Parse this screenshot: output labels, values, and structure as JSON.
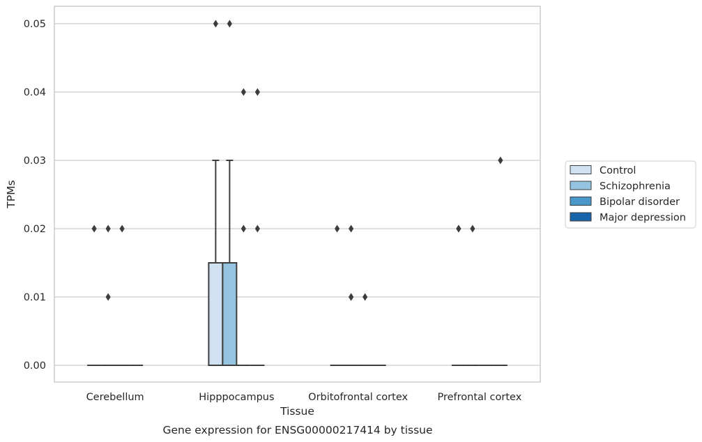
{
  "chart_data": {
    "type": "box",
    "xlabel": "Tissue",
    "ylabel": "TPMs",
    "caption": "Gene expression for ENSG00000217414 by tissue",
    "ylim": [
      -0.0025,
      0.0525
    ],
    "yticks": [
      0.0,
      0.01,
      0.02,
      0.03,
      0.04,
      0.05
    ],
    "ytick_labels": [
      "0.00",
      "0.01",
      "0.02",
      "0.03",
      "0.04",
      "0.05"
    ],
    "grid": "horizontal",
    "legend_position": "right",
    "categories": [
      "Cerebellum",
      "Hipppocampus",
      "Orbitofrontal cortex",
      "Prefrontal cortex"
    ],
    "series": [
      {
        "name": "Control",
        "color": "#d0e1f2",
        "boxes": [
          {
            "q1": 0,
            "median": 0,
            "q3": 0,
            "whisker_low": 0,
            "whisker_high": 0,
            "outliers": [
              0.02
            ]
          },
          {
            "q1": 0,
            "median": 0,
            "q3": 0.015,
            "whisker_low": 0,
            "whisker_high": 0.03,
            "outliers": [
              0.05
            ]
          },
          {
            "q1": 0,
            "median": 0,
            "q3": 0,
            "whisker_low": 0,
            "whisker_high": 0,
            "outliers": [
              0.02
            ]
          },
          {
            "q1": 0,
            "median": 0,
            "q3": 0,
            "whisker_low": 0,
            "whisker_high": 0,
            "outliers": [
              0.02,
              0.02
            ]
          }
        ]
      },
      {
        "name": "Schizophrenia",
        "color": "#94c4df",
        "boxes": [
          {
            "q1": 0,
            "median": 0,
            "q3": 0,
            "whisker_low": 0,
            "whisker_high": 0,
            "outliers": [
              0.02,
              0.01
            ]
          },
          {
            "q1": 0,
            "median": 0,
            "q3": 0.015,
            "whisker_low": 0,
            "whisker_high": 0.03,
            "outliers": [
              0.05
            ]
          },
          {
            "q1": 0,
            "median": 0,
            "q3": 0,
            "whisker_low": 0,
            "whisker_high": 0,
            "outliers": [
              0.02,
              0.01,
              0.01
            ]
          },
          {
            "q1": 0,
            "median": 0,
            "q3": 0,
            "whisker_low": 0,
            "whisker_high": 0,
            "outliers": [
              0.02
            ]
          }
        ]
      },
      {
        "name": "Bipolar disorder",
        "color": "#4a98c9",
        "boxes": [
          {
            "q1": 0,
            "median": 0,
            "q3": 0,
            "whisker_low": 0,
            "whisker_high": 0,
            "outliers": [
              0.02
            ]
          },
          {
            "q1": 0,
            "median": 0,
            "q3": 0,
            "whisker_low": 0,
            "whisker_high": 0,
            "outliers": [
              0.04,
              0.02
            ]
          },
          {
            "q1": 0,
            "median": 0,
            "q3": 0,
            "whisker_low": 0,
            "whisker_high": 0,
            "outliers": [
              0.01
            ]
          },
          {
            "q1": 0,
            "median": 0,
            "q3": 0,
            "whisker_low": 0,
            "whisker_high": 0,
            "outliers": []
          }
        ]
      },
      {
        "name": "Major depression",
        "color": "#1764ab",
        "boxes": [
          {
            "q1": 0,
            "median": 0,
            "q3": 0,
            "whisker_low": 0,
            "whisker_high": 0,
            "outliers": []
          },
          {
            "q1": 0,
            "median": 0,
            "q3": 0,
            "whisker_low": 0,
            "whisker_high": 0,
            "outliers": [
              0.04,
              0.02
            ]
          },
          {
            "q1": 0,
            "median": 0,
            "q3": 0,
            "whisker_low": 0,
            "whisker_high": 0,
            "outliers": []
          },
          {
            "q1": 0,
            "median": 0,
            "q3": 0,
            "whisker_low": 0,
            "whisker_high": 0,
            "outliers": [
              0.03
            ]
          }
        ]
      }
    ],
    "colors": {
      "grid": "#cccccc",
      "frame": "#cccccc",
      "line": "#3d3d3d",
      "text": "#262626"
    }
  }
}
